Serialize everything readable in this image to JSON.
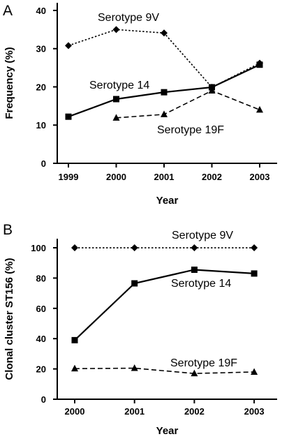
{
  "chart_data": [
    {
      "panel_label": "A",
      "type": "line",
      "xlabel": "Year",
      "ylabel": "Frequency (%)",
      "x": [
        1999,
        2000,
        2001,
        2002,
        2003
      ],
      "xticks": [
        "1999",
        "2000",
        "2001",
        "2002",
        "2003"
      ],
      "yticks": [
        "0",
        "10",
        "20",
        "30",
        "40"
      ],
      "ylim": [
        0,
        42
      ],
      "grid": false,
      "series": [
        {
          "name": "Serotype 9V",
          "marker": "diamond",
          "line": "dotted",
          "values": [
            30.8,
            35.0,
            34.1,
            19.9,
            26.2
          ]
        },
        {
          "name": "Serotype 14",
          "marker": "square",
          "line": "solid",
          "values": [
            12.2,
            16.8,
            18.6,
            19.9,
            25.8
          ]
        },
        {
          "name": "Serotype 19F",
          "marker": "triangle",
          "line": "dashed",
          "values": [
            null,
            11.9,
            12.8,
            19.0,
            14.0
          ]
        }
      ]
    },
    {
      "panel_label": "B",
      "type": "line",
      "xlabel": "Year",
      "ylabel": "Clonal cluster ST156 (%)",
      "x": [
        2000,
        2001,
        2002,
        2003
      ],
      "xticks": [
        "2000",
        "2001",
        "2002",
        "2003"
      ],
      "yticks": [
        "0",
        "20",
        "40",
        "60",
        "80",
        "100"
      ],
      "ylim": [
        0,
        106
      ],
      "grid": false,
      "series": [
        {
          "name": "Serotype 9V",
          "marker": "diamond",
          "line": "dotted",
          "values": [
            100,
            100,
            100,
            100
          ]
        },
        {
          "name": "Serotype 14",
          "marker": "square",
          "line": "solid",
          "values": [
            39,
            76.5,
            85.5,
            83
          ]
        },
        {
          "name": "Serotype 19F",
          "marker": "triangle",
          "line": "dashed",
          "values": [
            20.2,
            20.5,
            17.0,
            18.0
          ]
        }
      ]
    }
  ]
}
